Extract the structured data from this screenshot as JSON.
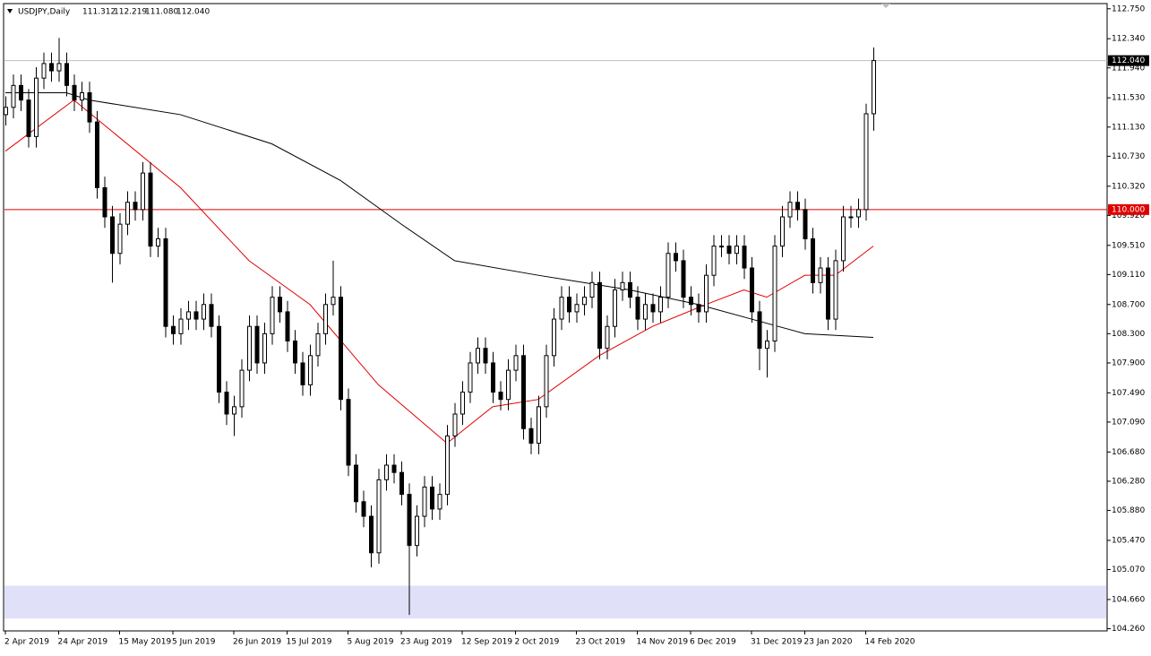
{
  "chart_data": {
    "type": "candlestick",
    "title": "USDJPY,Daily",
    "header_values": [
      "111.312",
      "112.219",
      "111.080",
      "112.040"
    ],
    "categories": [
      "2 Apr 2019",
      null,
      null,
      null,
      null,
      null,
      null,
      "24 Apr 2019",
      null,
      null,
      null,
      null,
      null,
      null,
      null,
      "15 May 2019",
      null,
      null,
      null,
      null,
      null,
      null,
      "5 Jun 2019",
      null,
      null,
      null,
      null,
      null,
      null,
      null,
      "26 Jun 2019",
      null,
      null,
      null,
      null,
      null,
      null,
      "15 Jul 2019",
      null,
      null,
      null,
      null,
      null,
      null,
      null,
      "5 Aug 2019",
      null,
      null,
      null,
      null,
      null,
      null,
      "23 Aug 2019",
      null,
      null,
      null,
      null,
      null,
      null,
      null,
      "12 Sep 2019",
      null,
      null,
      null,
      null,
      null,
      null,
      "2 Oct 2019",
      null,
      null,
      null,
      null,
      null,
      null,
      null,
      "23 Oct 2019",
      null,
      null,
      null,
      null,
      null,
      null,
      null,
      "14 Nov 2019",
      null,
      null,
      null,
      null,
      null,
      null,
      "6 Dec 2019",
      null,
      null,
      null,
      null,
      null,
      null,
      null,
      "31 Dec 2019",
      null,
      null,
      null,
      null,
      null,
      null,
      "23 Jan 2020",
      null,
      null,
      null,
      null,
      null,
      null,
      null,
      "14 Feb 2020",
      null
    ],
    "open": [
      111.3,
      111.4,
      111.7,
      111.5,
      111.0,
      111.8,
      112.0,
      111.9,
      112.0,
      111.7,
      111.5,
      111.6,
      111.2,
      110.3,
      109.9,
      109.4,
      109.8,
      110.1,
      110.0,
      110.5,
      109.5,
      109.6,
      108.4,
      108.3,
      108.5,
      108.6,
      108.5,
      108.7,
      108.4,
      107.5,
      107.2,
      107.3,
      107.8,
      108.4,
      107.9,
      108.3,
      108.8,
      108.6,
      108.2,
      107.9,
      107.6,
      108.0,
      108.3,
      108.7,
      108.8,
      107.4,
      106.5,
      106.0,
      105.8,
      105.3,
      106.3,
      106.5,
      106.4,
      106.1,
      105.4,
      105.8,
      106.2,
      105.9,
      106.1,
      106.9,
      107.2,
      107.5,
      107.9,
      108.1,
      107.9,
      107.5,
      107.4,
      107.8,
      108.0,
      107.0,
      106.8,
      107.3,
      108.0,
      108.5,
      108.8,
      108.6,
      108.7,
      108.8,
      109.0,
      108.1,
      108.4,
      108.9,
      109.0,
      108.8,
      108.5,
      108.7,
      108.6,
      108.8,
      109.4,
      109.3,
      108.8,
      108.7,
      108.6,
      109.1,
      109.5,
      109.5,
      109.4,
      109.5,
      109.2,
      108.6,
      108.1,
      108.2,
      109.5,
      109.9,
      110.1,
      110.0,
      109.6,
      109.0,
      109.2,
      108.5,
      109.3,
      109.9,
      109.9,
      110.0,
      111.312
    ],
    "high": [
      111.55,
      111.85,
      111.85,
      111.65,
      111.95,
      112.15,
      112.15,
      112.35,
      112.15,
      111.85,
      111.75,
      111.75,
      111.35,
      110.45,
      110.05,
      109.95,
      110.25,
      110.25,
      110.65,
      110.65,
      109.75,
      109.75,
      108.55,
      108.65,
      108.75,
      108.75,
      108.85,
      108.85,
      108.55,
      107.65,
      107.45,
      107.95,
      108.55,
      108.55,
      108.45,
      108.95,
      108.95,
      108.75,
      108.35,
      108.05,
      108.15,
      108.45,
      108.85,
      109.3,
      108.95,
      107.55,
      106.65,
      106.15,
      105.95,
      106.45,
      106.65,
      106.65,
      106.55,
      106.25,
      105.95,
      106.35,
      106.35,
      106.25,
      107.05,
      107.35,
      107.65,
      108.05,
      108.25,
      108.25,
      108.05,
      107.65,
      107.95,
      108.15,
      108.15,
      107.15,
      107.45,
      108.15,
      108.65,
      108.95,
      108.95,
      108.85,
      108.95,
      109.15,
      109.15,
      108.55,
      109.05,
      109.15,
      109.15,
      108.95,
      108.85,
      108.85,
      108.95,
      109.55,
      109.55,
      109.45,
      108.95,
      108.85,
      109.25,
      109.65,
      109.65,
      109.65,
      109.65,
      109.65,
      109.35,
      108.75,
      108.35,
      109.65,
      110.05,
      110.25,
      110.25,
      110.15,
      109.75,
      109.35,
      109.35,
      109.45,
      110.05,
      110.05,
      110.15,
      111.45,
      112.219
    ],
    "low": [
      111.15,
      111.25,
      111.35,
      110.85,
      110.85,
      111.65,
      111.75,
      111.75,
      111.55,
      111.35,
      111.35,
      111.05,
      110.15,
      109.75,
      109.0,
      109.25,
      109.65,
      109.85,
      109.85,
      109.35,
      109.35,
      108.25,
      108.15,
      108.15,
      108.35,
      108.35,
      108.35,
      108.25,
      107.35,
      107.05,
      106.9,
      107.15,
      107.65,
      107.75,
      107.75,
      108.15,
      108.45,
      108.05,
      107.75,
      107.45,
      107.45,
      107.85,
      108.15,
      108.55,
      107.25,
      106.35,
      105.85,
      105.65,
      105.1,
      105.15,
      106.15,
      106.25,
      105.95,
      104.45,
      105.25,
      105.65,
      105.75,
      105.75,
      105.95,
      106.75,
      107.05,
      107.35,
      107.75,
      107.75,
      107.35,
      107.25,
      107.25,
      107.65,
      106.85,
      106.65,
      106.65,
      107.15,
      107.85,
      108.35,
      108.45,
      108.45,
      108.55,
      108.65,
      107.95,
      107.95,
      108.25,
      108.75,
      108.65,
      108.35,
      108.35,
      108.45,
      108.45,
      108.65,
      109.15,
      108.65,
      108.55,
      108.45,
      108.45,
      108.95,
      109.35,
      109.25,
      109.25,
      109.05,
      108.45,
      107.8,
      107.7,
      108.05,
      109.35,
      109.75,
      109.85,
      109.45,
      108.85,
      108.85,
      108.35,
      108.35,
      109.15,
      109.75,
      109.75,
      109.85,
      111.08
    ],
    "close": [
      111.4,
      111.7,
      111.5,
      111.0,
      111.8,
      112.0,
      111.9,
      112.0,
      111.7,
      111.5,
      111.6,
      111.2,
      110.3,
      109.9,
      109.4,
      109.8,
      110.1,
      110.0,
      110.5,
      109.5,
      109.6,
      108.4,
      108.3,
      108.5,
      108.6,
      108.5,
      108.7,
      108.4,
      107.5,
      107.2,
      107.3,
      107.8,
      108.4,
      107.9,
      108.3,
      108.8,
      108.6,
      108.2,
      107.9,
      107.6,
      108.0,
      108.3,
      108.7,
      108.8,
      107.4,
      106.5,
      106.0,
      105.8,
      105.3,
      106.3,
      106.5,
      106.4,
      106.1,
      105.4,
      105.8,
      106.2,
      105.9,
      106.1,
      106.9,
      107.2,
      107.5,
      107.9,
      108.1,
      107.9,
      107.5,
      107.4,
      107.8,
      108.0,
      107.0,
      106.8,
      107.3,
      108.0,
      108.5,
      108.8,
      108.6,
      108.7,
      108.8,
      109.0,
      108.1,
      108.4,
      108.9,
      109.0,
      108.8,
      108.5,
      108.7,
      108.6,
      108.8,
      109.4,
      109.3,
      108.8,
      108.7,
      108.6,
      109.1,
      109.5,
      109.5,
      109.4,
      109.5,
      109.2,
      108.6,
      108.1,
      108.2,
      109.5,
      109.9,
      110.1,
      110.0,
      109.6,
      109.0,
      109.2,
      108.5,
      109.3,
      109.9,
      109.9,
      110.0,
      111.312,
      112.04
    ],
    "series": [
      {
        "color": "#e00000",
        "x": [
          0,
          9,
          23,
          32,
          40,
          49,
          58,
          64,
          70,
          78,
          85,
          92,
          97,
          100,
          105,
          109,
          114
        ],
        "values": [
          110.8,
          111.5,
          110.3,
          109.3,
          108.7,
          107.6,
          106.8,
          107.3,
          107.4,
          108.0,
          108.4,
          108.7,
          108.9,
          108.8,
          109.1,
          109.1,
          109.5
        ]
      },
      {
        "color": "#000000",
        "x": [
          0,
          8,
          11,
          23,
          35,
          44,
          52,
          59,
          70,
          82,
          91,
          98,
          105,
          114
        ],
        "values": [
          111.6,
          111.6,
          111.5,
          111.3,
          110.9,
          110.4,
          109.8,
          109.3,
          109.1,
          108.9,
          108.7,
          108.5,
          108.3,
          108.25
        ]
      }
    ],
    "hline": {
      "value": 110,
      "label": "110.000",
      "color": "#e00000"
    },
    "current_price": {
      "value": 112.04,
      "label": "112.040"
    },
    "zone": {
      "low": 104.4,
      "high": 104.85,
      "color": "#e0e0f8"
    },
    "ylim": [
      104.23,
      112.87
    ],
    "yticks": [
      {
        "value": 112.75,
        "label": "112.750"
      },
      {
        "value": 112.34,
        "label": "112.340"
      },
      {
        "value": 111.94,
        "label": "111.940"
      },
      {
        "value": 111.53,
        "label": "111.530"
      },
      {
        "value": 111.13,
        "label": "111.130"
      },
      {
        "value": 110.73,
        "label": "110.730"
      },
      {
        "value": 110.32,
        "label": "110.320"
      },
      {
        "value": 109.92,
        "label": "109.920"
      },
      {
        "value": 109.51,
        "label": "109.510"
      },
      {
        "value": 109.11,
        "label": "109.110"
      },
      {
        "value": 108.7,
        "label": "108.700"
      },
      {
        "value": 108.3,
        "label": "108.300"
      },
      {
        "value": 107.9,
        "label": "107.900"
      },
      {
        "value": 107.49,
        "label": "107.490"
      },
      {
        "value": 107.09,
        "label": "107.090"
      },
      {
        "value": 106.68,
        "label": "106.680"
      },
      {
        "value": 106.28,
        "label": "106.280"
      },
      {
        "value": 105.88,
        "label": "105.880"
      },
      {
        "value": 105.47,
        "label": "105.470"
      },
      {
        "value": 105.07,
        "label": "105.070"
      },
      {
        "value": 104.66,
        "label": "104.660"
      },
      {
        "value": 104.26,
        "label": "104.260"
      }
    ]
  }
}
